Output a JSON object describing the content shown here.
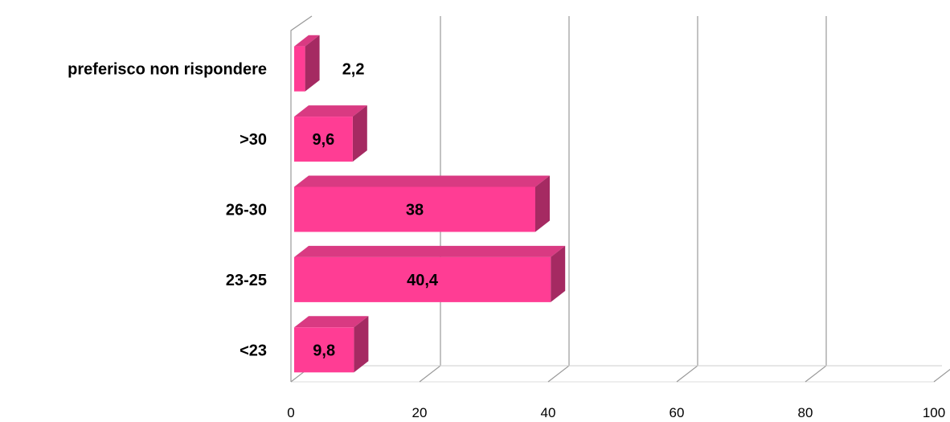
{
  "chart_data": {
    "type": "bar",
    "orientation": "horizontal",
    "style": "3d",
    "categories": [
      "<23",
      "23-25",
      "26-30",
      ">30",
      "preferisco non rispondere"
    ],
    "values": [
      9.8,
      40.4,
      38,
      9.6,
      2.2
    ],
    "value_labels": [
      "9,8",
      "40,4",
      "38",
      "9,6",
      "2,2"
    ],
    "xlim": [
      0,
      100
    ],
    "x_ticks": [
      0,
      20,
      40,
      60,
      80,
      100
    ],
    "x_tick_labels": [
      "0",
      "20",
      "40",
      "60",
      "80",
      "100"
    ],
    "title": "",
    "xlabel": "",
    "ylabel": "",
    "grid": "vertical",
    "legend": "none",
    "colors": {
      "bar_front": "#ff3d94",
      "bar_top": "#d93a82",
      "bar_side": "#a52a62",
      "grid": "#999999"
    }
  }
}
